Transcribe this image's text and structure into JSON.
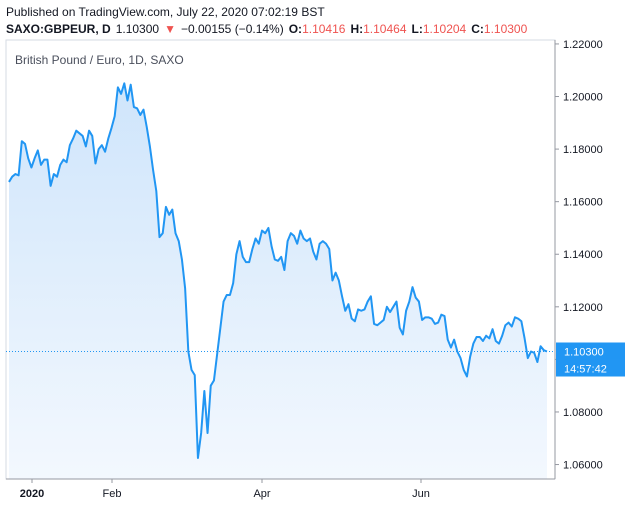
{
  "header": {
    "published": "Published on TradingView.com, July 22, 2020 07:02:19 BST",
    "symbol": "SAXO:GBPEUR, D",
    "last_price": "1.10300",
    "change": "−0.00155 (−0.14%)",
    "open_label": "O:",
    "open_value": "1.10416",
    "high_label": "H:",
    "high_value": "1.10464",
    "low_label": "L:",
    "low_value": "1.10204",
    "close_label": "C:",
    "close_value": "1.10300"
  },
  "chart_data": {
    "type": "area",
    "title": "British Pound / Euro, 1D, SAXO",
    "x_tick_labels": [
      "2020",
      "Feb",
      "Apr",
      "Jun"
    ],
    "y_tick_labels": [
      "1.22000",
      "1.20000",
      "1.18000",
      "1.16000",
      "1.14000",
      "1.12000",
      "1.10000",
      "1.08000",
      "1.06000"
    ],
    "ylim": [
      1.0545,
      1.2215
    ],
    "last_price_label": "1.10300",
    "countdown_label": "14:57:42",
    "colors": {
      "line": "#2196f3",
      "fill_top": "#cfe5fb",
      "fill_bottom": "#f3f8fe",
      "price_label_bg": "#2196f3",
      "down": "#ef5350"
    },
    "series": [
      {
        "values": [
          1.1675,
          1.1695,
          1.1705,
          1.17,
          1.183,
          1.182,
          1.1765,
          1.173,
          1.1765,
          1.1795,
          1.174,
          1.176,
          1.176,
          1.166,
          1.1705,
          1.1695,
          1.174,
          1.176,
          1.175,
          1.1815,
          1.184,
          1.187,
          1.186,
          1.185,
          1.181,
          1.187,
          1.185,
          1.1745,
          1.18,
          1.1815,
          1.179,
          1.184,
          1.188,
          1.1925,
          1.2035,
          1.201,
          1.205,
          1.1985,
          1.2045,
          1.196,
          1.1955,
          1.193,
          1.195,
          1.1885,
          1.181,
          1.172,
          1.164,
          1.1465,
          1.148,
          1.158,
          1.155,
          1.157,
          1.148,
          1.145,
          1.138,
          1.127,
          1.103,
          1.096,
          1.094,
          1.0625,
          1.072,
          1.088,
          1.072,
          1.09,
          1.092,
          1.102,
          1.112,
          1.122,
          1.1245,
          1.1245,
          1.129,
          1.14,
          1.145,
          1.139,
          1.137,
          1.137,
          1.142,
          1.146,
          1.144,
          1.149,
          1.148,
          1.15,
          1.143,
          1.138,
          1.1375,
          1.139,
          1.134,
          1.145,
          1.148,
          1.147,
          1.144,
          1.149,
          1.146,
          1.145,
          1.146,
          1.141,
          1.138,
          1.144,
          1.145,
          1.144,
          1.142,
          1.13,
          1.133,
          1.13,
          1.124,
          1.1185,
          1.121,
          1.1155,
          1.1145,
          1.119,
          1.1185,
          1.119,
          1.122,
          1.124,
          1.1135,
          1.113,
          1.114,
          1.115,
          1.12,
          1.118,
          1.12,
          1.122,
          1.112,
          1.1095,
          1.1185,
          1.122,
          1.1275,
          1.1235,
          1.122,
          1.115,
          1.116,
          1.116,
          1.1155,
          1.1135,
          1.114,
          1.117,
          1.1165,
          1.1075,
          1.1045,
          1.1075,
          1.103,
          1.1005,
          1.096,
          1.0935,
          1.101,
          1.106,
          1.1085,
          1.1085,
          1.107,
          1.109,
          1.108,
          1.1115,
          1.107,
          1.106,
          1.109,
          1.113,
          1.114,
          1.1125,
          1.116,
          1.1155,
          1.1145,
          1.108,
          1.1005,
          1.103,
          1.1025,
          1.099,
          1.105,
          1.1035,
          1.103
        ]
      }
    ]
  }
}
